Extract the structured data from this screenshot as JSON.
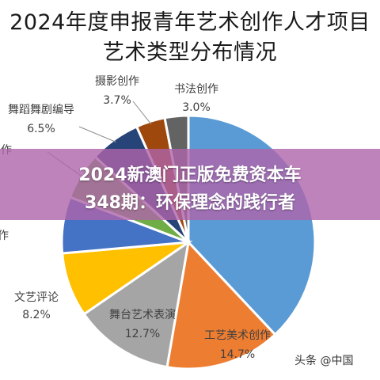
{
  "title": {
    "line1": "2024年度申报青年艺术创作人才项目",
    "line2": "艺术类型分布情况"
  },
  "banner": {
    "line1": "2024新澳门正版免费资本车",
    "line2": "348期：环保理念的践行者"
  },
  "watermark": {
    "text": "头条 @中国",
    "icon": "at-icon"
  },
  "chart_data": {
    "type": "pie",
    "title": "2024年度申报青年艺术创作人才项目艺术类型分布情况",
    "labels": [
      {
        "name": "书法创作",
        "value_label": "3.0%"
      },
      {
        "name": "摄影创作",
        "value_label": "3.7%"
      },
      {
        "name": "舞蹈舞剧编导",
        "value_label": "6.5%"
      },
      {
        "name": "作",
        "value_label": ""
      },
      {
        "name": "作",
        "value_label": ""
      },
      {
        "name": "文艺评论",
        "value_label": "8.2%"
      },
      {
        "name": "舞台艺术表演",
        "value_label": "12.7%"
      },
      {
        "name": "工艺美术创作",
        "value_label": "14.7%"
      }
    ],
    "slices": [
      {
        "name": "",
        "value": 38.0,
        "color": "#5b9bd5"
      },
      {
        "name": "工艺美术创作",
        "value": 14.7,
        "color": "#ed7d31"
      },
      {
        "name": "舞台艺术表演",
        "value": 12.7,
        "color": "#a5a5a5"
      },
      {
        "name": "文艺评论",
        "value": 8.2,
        "color": "#ffc000"
      },
      {
        "name": "",
        "value": 7.2,
        "color": "#4472c4"
      },
      {
        "name": "",
        "value": 6.0,
        "color": "#70ad47"
      },
      {
        "name": "舞蹈舞剧编导",
        "value": 6.5,
        "color": "#264478"
      },
      {
        "name": "摄影创作",
        "value": 3.7,
        "color": "#9e480e"
      },
      {
        "name": "书法创作",
        "value": 3.0,
        "color": "#636363"
      }
    ]
  }
}
